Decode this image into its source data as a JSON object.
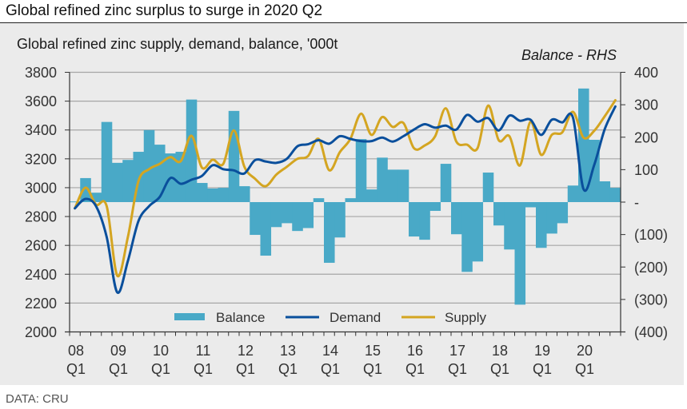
{
  "headline": "Global refined zinc surplus to surge in 2020 Q2",
  "source": "DATA: CRU",
  "colors": {
    "balance": "#49a9c7",
    "demand": "#0a4f9c",
    "supply": "#d4a521",
    "grid": "#a6a6a6",
    "axis": "#333333",
    "panel": "#ebebeb"
  },
  "chart_data": {
    "type": "bar+line",
    "title": "Global refined zinc supply, demand, balance, '000t",
    "rhs_note": "Balance - RHS",
    "x_labels": [
      {
        "year": "08",
        "q": "Q1",
        "index": 0
      },
      {
        "year": "09",
        "q": "Q1",
        "index": 4
      },
      {
        "year": "10",
        "q": "Q1",
        "index": 8
      },
      {
        "year": "11",
        "q": "Q1",
        "index": 12
      },
      {
        "year": "12",
        "q": "Q1",
        "index": 16
      },
      {
        "year": "13",
        "q": "Q1",
        "index": 20
      },
      {
        "year": "14",
        "q": "Q1",
        "index": 24
      },
      {
        "year": "15",
        "q": "Q1",
        "index": 28
      },
      {
        "year": "16",
        "q": "Q1",
        "index": 32
      },
      {
        "year": "17",
        "q": "Q1",
        "index": 36
      },
      {
        "year": "18",
        "q": "Q1",
        "index": 40
      },
      {
        "year": "19",
        "q": "Q1",
        "index": 44
      },
      {
        "year": "20",
        "q": "Q1",
        "index": 48
      }
    ],
    "quarters": [
      "08Q1",
      "08Q2",
      "08Q3",
      "08Q4",
      "09Q1",
      "09Q2",
      "09Q3",
      "09Q4",
      "10Q1",
      "10Q2",
      "10Q3",
      "10Q4",
      "11Q1",
      "11Q2",
      "11Q3",
      "11Q4",
      "12Q1",
      "12Q2",
      "12Q3",
      "12Q4",
      "13Q1",
      "13Q2",
      "13Q3",
      "13Q4",
      "14Q1",
      "14Q2",
      "14Q3",
      "14Q4",
      "15Q1",
      "15Q2",
      "15Q3",
      "15Q4",
      "16Q1",
      "16Q2",
      "16Q3",
      "16Q4",
      "17Q1",
      "17Q2",
      "17Q3",
      "17Q4",
      "18Q1",
      "18Q2",
      "18Q3",
      "18Q4",
      "19Q1",
      "19Q2",
      "19Q3",
      "19Q4",
      "20Q1",
      "20Q2",
      "20Q3",
      "20Q4"
    ],
    "left_axis": {
      "min": 2000,
      "max": 3800,
      "step": 200,
      "ticks": [
        "2000",
        "2200",
        "2400",
        "2600",
        "2800",
        "3000",
        "3200",
        "3400",
        "3600",
        "3800"
      ]
    },
    "right_axis": {
      "min": -400,
      "max": 400,
      "step": 100,
      "ticks": [
        "(400)",
        "(300)",
        "(200)",
        "(100)",
        "-",
        "100",
        "200",
        "300",
        "400"
      ]
    },
    "grid": true,
    "legend": {
      "placement": "bottom-center",
      "items": [
        "Balance",
        "Demand",
        "Supply"
      ]
    },
    "series": [
      {
        "name": "Balance",
        "type": "bar",
        "axis": "right",
        "values": [
          2,
          74,
          29,
          247,
          121,
          130,
          155,
          222,
          177,
          150,
          155,
          316,
          59,
          42,
          44,
          281,
          49,
          -101,
          -165,
          -77,
          -65,
          -89,
          -80,
          12,
          -187,
          -109,
          12,
          194,
          39,
          137,
          100,
          100,
          -106,
          -116,
          -27,
          118,
          -99,
          -215,
          -183,
          91,
          -72,
          -146,
          -316,
          -16,
          -141,
          -97,
          -65,
          51,
          350,
          192,
          64,
          44
        ]
      },
      {
        "name": "Demand",
        "type": "line",
        "axis": "left",
        "values": [
          2857,
          2922,
          2872,
          2658,
          2274,
          2492,
          2768,
          2872,
          2935,
          3066,
          3027,
          3055,
          3082,
          3156,
          3128,
          3120,
          3099,
          3191,
          3182,
          3172,
          3200,
          3287,
          3301,
          3329,
          3305,
          3357,
          3338,
          3323,
          3323,
          3347,
          3320,
          3357,
          3403,
          3440,
          3416,
          3430,
          3403,
          3504,
          3458,
          3482,
          3397,
          3500,
          3464,
          3471,
          3366,
          3471,
          3453,
          3486,
          2990,
          3156,
          3405,
          3563
        ]
      },
      {
        "name": "Supply",
        "type": "line",
        "axis": "left",
        "values": [
          2857,
          3000,
          2883,
          2872,
          2390,
          2658,
          3045,
          3128,
          3165,
          3212,
          3184,
          3360,
          3138,
          3194,
          3165,
          3397,
          3145,
          3062,
          3010,
          3090,
          3145,
          3200,
          3219,
          3338,
          3121,
          3246,
          3338,
          3513,
          3366,
          3490,
          3421,
          3449,
          3274,
          3292,
          3357,
          3550,
          3320,
          3298,
          3274,
          3569,
          3329,
          3357,
          3154,
          3458,
          3228,
          3366,
          3384,
          3526,
          3347,
          3394,
          3495,
          3606
        ]
      }
    ]
  }
}
